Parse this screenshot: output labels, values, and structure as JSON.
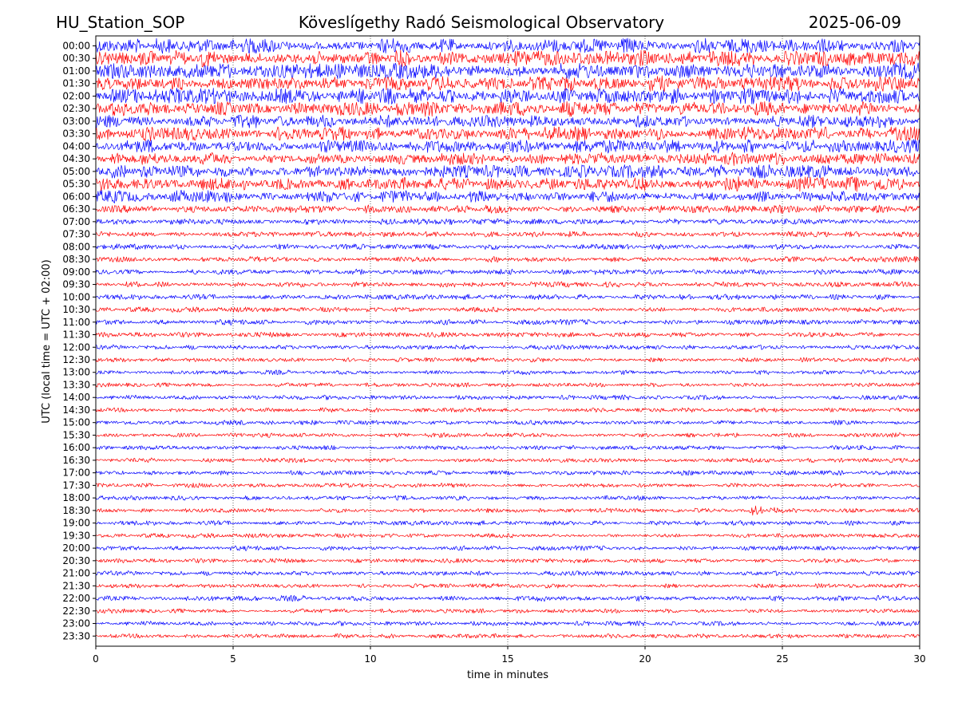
{
  "header": {
    "station": "HU_Station_SOP",
    "observatory": "Köveslígethy Radó Seismological Observatory",
    "date": "2025-06-09"
  },
  "chart_data": {
    "type": "line",
    "title": "Köveslígethy Radó Seismological Observatory",
    "xlabel": "time in minutes",
    "ylabel": "UTC (local time = UTC + 02:00)",
    "xlim": [
      0,
      30
    ],
    "x_ticks": [
      "0",
      "5",
      "10",
      "15",
      "20",
      "25",
      "30"
    ],
    "grid": "vertical dotted lines at each x tick",
    "series_colors": [
      "#0000ff",
      "#ff0000"
    ],
    "rows": [
      {
        "label": "00:00",
        "amplitude": 0.95
      },
      {
        "label": "00:30",
        "amplitude": 1.0
      },
      {
        "label": "01:00",
        "amplitude": 0.95
      },
      {
        "label": "01:30",
        "amplitude": 0.95
      },
      {
        "label": "02:00",
        "amplitude": 0.95
      },
      {
        "label": "02:30",
        "amplitude": 0.95
      },
      {
        "label": "03:00",
        "amplitude": 0.85
      },
      {
        "label": "03:30",
        "amplitude": 0.85
      },
      {
        "label": "04:00",
        "amplitude": 0.8
      },
      {
        "label": "04:30",
        "amplitude": 0.8
      },
      {
        "label": "05:00",
        "amplitude": 0.8
      },
      {
        "label": "05:30",
        "amplitude": 0.9
      },
      {
        "label": "06:00",
        "amplitude": 0.75
      },
      {
        "label": "06:30",
        "amplitude": 0.45
      },
      {
        "label": "07:00",
        "amplitude": 0.3
      },
      {
        "label": "07:30",
        "amplitude": 0.28
      },
      {
        "label": "08:00",
        "amplitude": 0.28
      },
      {
        "label": "08:30",
        "amplitude": 0.28
      },
      {
        "label": "09:00",
        "amplitude": 0.28
      },
      {
        "label": "09:30",
        "amplitude": 0.28
      },
      {
        "label": "10:00",
        "amplitude": 0.27
      },
      {
        "label": "10:30",
        "amplitude": 0.25
      },
      {
        "label": "11:00",
        "amplitude": 0.27
      },
      {
        "label": "11:30",
        "amplitude": 0.25
      },
      {
        "label": "12:00",
        "amplitude": 0.22
      },
      {
        "label": "12:30",
        "amplitude": 0.2
      },
      {
        "label": "13:00",
        "amplitude": 0.22
      },
      {
        "label": "13:30",
        "amplitude": 0.2
      },
      {
        "label": "14:00",
        "amplitude": 0.22
      },
      {
        "label": "14:30",
        "amplitude": 0.2
      },
      {
        "label": "15:00",
        "amplitude": 0.22
      },
      {
        "label": "15:30",
        "amplitude": 0.2
      },
      {
        "label": "16:00",
        "amplitude": 0.22
      },
      {
        "label": "16:30",
        "amplitude": 0.2
      },
      {
        "label": "17:00",
        "amplitude": 0.22
      },
      {
        "label": "17:30",
        "amplitude": 0.2
      },
      {
        "label": "18:00",
        "amplitude": 0.22
      },
      {
        "label": "18:30",
        "amplitude": 0.2,
        "event_minute": 23.8
      },
      {
        "label": "19:00",
        "amplitude": 0.22
      },
      {
        "label": "19:30",
        "amplitude": 0.2
      },
      {
        "label": "20:00",
        "amplitude": 0.22
      },
      {
        "label": "20:30",
        "amplitude": 0.2
      },
      {
        "label": "21:00",
        "amplitude": 0.22
      },
      {
        "label": "21:30",
        "amplitude": 0.2
      },
      {
        "label": "22:00",
        "amplitude": 0.3
      },
      {
        "label": "22:30",
        "amplitude": 0.2
      },
      {
        "label": "23:00",
        "amplitude": 0.22
      },
      {
        "label": "23:30",
        "amplitude": 0.2
      }
    ]
  }
}
